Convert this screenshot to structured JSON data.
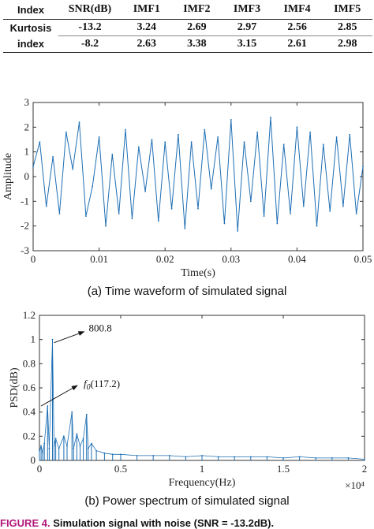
{
  "table": {
    "headers": [
      "Index",
      "SNR(dB)",
      "IMF1",
      "IMF2",
      "IMF3",
      "IMF4",
      "IMF5"
    ],
    "row_label_line1": "Kurtosis",
    "row_label_line2": "index",
    "rows": [
      [
        "-13.2",
        "3.24",
        "2.69",
        "2.97",
        "2.56",
        "2.85"
      ],
      [
        "-8.2",
        "2.63",
        "3.38",
        "3.15",
        "2.61",
        "2.98"
      ]
    ]
  },
  "chart_data": [
    {
      "type": "line",
      "caption": "(a) Time waveform of simulated signal",
      "xlabel": "Time(s)",
      "ylabel": "Amplitude",
      "xlim": [
        0,
        0.05
      ],
      "ylim": [
        -3,
        3
      ],
      "xticks": [
        "0",
        "0.01",
        "0.02",
        "0.03",
        "0.04",
        "0.05"
      ],
      "yticks": [
        "3",
        "2",
        "1",
        "0",
        "-1",
        "-2",
        "-3"
      ],
      "series_color": "#1f6fb4",
      "series": [
        {
          "x": [
            0,
            0.001,
            0.002,
            0.003,
            0.004,
            0.005,
            0.006,
            0.007,
            0.008,
            0.009,
            0.01,
            0.011,
            0.012,
            0.013,
            0.014,
            0.015,
            0.016,
            0.017,
            0.018,
            0.019,
            0.02,
            0.021,
            0.022,
            0.023,
            0.024,
            0.025,
            0.026,
            0.027,
            0.028,
            0.029,
            0.03,
            0.031,
            0.032,
            0.033,
            0.034,
            0.035,
            0.036,
            0.037,
            0.038,
            0.039,
            0.04,
            0.041,
            0.042,
            0.043,
            0.044,
            0.045,
            0.046,
            0.047,
            0.048,
            0.049,
            0.05
          ],
          "y": [
            0.4,
            1.4,
            -1.2,
            0.8,
            -1.5,
            1.8,
            0.3,
            2.2,
            -1.6,
            -0.4,
            1.6,
            -2.0,
            0.9,
            -1.5,
            1.9,
            -1.7,
            1.2,
            -0.6,
            1.5,
            -1.8,
            1.4,
            -1.3,
            1.7,
            -2.1,
            1.4,
            -1.3,
            1.9,
            -0.5,
            1.6,
            -1.9,
            2.3,
            -2.2,
            1.4,
            -1.0,
            1.8,
            -1.6,
            2.4,
            -1.9,
            1.3,
            -1.5,
            2.0,
            -1.2,
            1.8,
            -2.0,
            1.3,
            -1.4,
            1.6,
            -1.2,
            1.7,
            -1.5,
            0.4
          ]
        }
      ]
    },
    {
      "type": "line",
      "caption": "(b) Power spectrum of simulated signal",
      "xlabel": "Frequency(Hz)",
      "ylabel": "PSD(dB)",
      "xlim": [
        0,
        2
      ],
      "ylim": [
        0,
        1.2
      ],
      "xticks": [
        "0",
        "0.5",
        "1",
        "1.5",
        "2"
      ],
      "yticks": [
        "1.2",
        "1",
        "0.8",
        "0.6",
        "0.4",
        "0.2",
        "0"
      ],
      "x_multiplier": "×10⁴",
      "series_color": "#1f6fb4",
      "annotations": [
        "800.8",
        "(117.2)"
      ],
      "annotation_symbol": "f",
      "annotation_subscript": "0",
      "series": [
        {
          "x": [
            0,
            0.01,
            0.02,
            0.03,
            0.05,
            0.06,
            0.08,
            0.09,
            0.1,
            0.12,
            0.15,
            0.17,
            0.2,
            0.21,
            0.23,
            0.25,
            0.27,
            0.29,
            0.3,
            0.32,
            0.35,
            0.4,
            0.45,
            0.5,
            0.6,
            0.7,
            0.8,
            0.9,
            1.0,
            1.1,
            1.2,
            1.3,
            1.4,
            1.5,
            1.6,
            1.7,
            1.8,
            1.9,
            2.0
          ],
          "y": [
            0.08,
            0.12,
            0.06,
            0.14,
            0.45,
            0.1,
            1.0,
            0.12,
            0.18,
            0.1,
            0.2,
            0.12,
            0.4,
            0.1,
            0.22,
            0.12,
            0.18,
            0.38,
            0.1,
            0.14,
            0.08,
            0.06,
            0.05,
            0.05,
            0.04,
            0.04,
            0.04,
            0.03,
            0.04,
            0.03,
            0.03,
            0.03,
            0.03,
            0.02,
            0.03,
            0.02,
            0.02,
            0.02,
            0.01
          ]
        }
      ]
    }
  ],
  "figure_caption": {
    "label": "FIGURE 4.",
    "text": "Simulation signal with noise (SNR = -13.2dB)."
  }
}
